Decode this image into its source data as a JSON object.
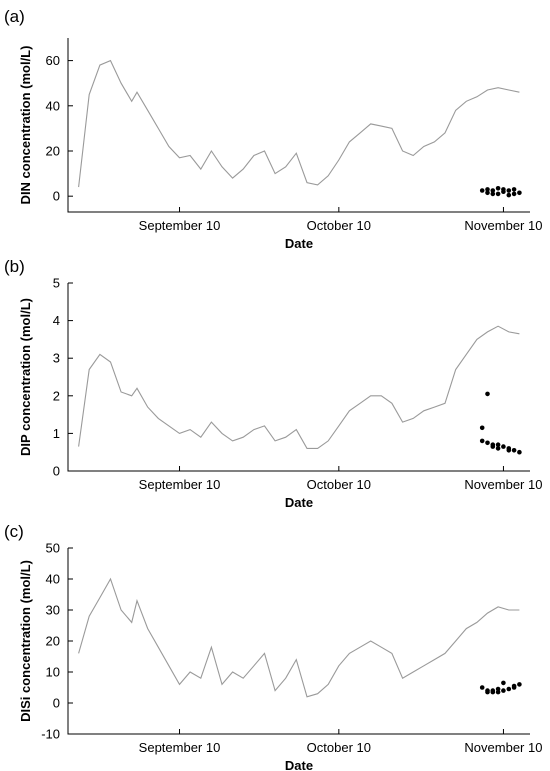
{
  "chart_data": [
    {
      "type": "line",
      "panel_label": "(a)",
      "xlabel": "Date",
      "ylabel": "DIN concentration (mol/L)",
      "x_tick_labels": [
        "September 10",
        "October 10",
        "November 10"
      ],
      "x_ticks": [
        "2023-09-10",
        "2023-10-10",
        "2023-11-10"
      ],
      "xlim": [
        "2023-08-20",
        "2023-11-15"
      ],
      "ylim": [
        -7,
        70
      ],
      "y_ticks": [
        0,
        20,
        40,
        60
      ],
      "series": [
        {
          "style": "line",
          "color": "#9a9a9a",
          "x": [
            "2023-08-22",
            "2023-08-24",
            "2023-08-26",
            "2023-08-28",
            "2023-08-30",
            "2023-09-01",
            "2023-09-02",
            "2023-09-04",
            "2023-09-06",
            "2023-09-08",
            "2023-09-10",
            "2023-09-12",
            "2023-09-14",
            "2023-09-16",
            "2023-09-18",
            "2023-09-20",
            "2023-09-22",
            "2023-09-24",
            "2023-09-26",
            "2023-09-28",
            "2023-09-30",
            "2023-10-02",
            "2023-10-04",
            "2023-10-06",
            "2023-10-08",
            "2023-10-10",
            "2023-10-12",
            "2023-10-14",
            "2023-10-16",
            "2023-10-18",
            "2023-10-20",
            "2023-10-22",
            "2023-10-24",
            "2023-10-26",
            "2023-10-28",
            "2023-10-30",
            "2023-11-01",
            "2023-11-03",
            "2023-11-05",
            "2023-11-07",
            "2023-11-09",
            "2023-11-11",
            "2023-11-13"
          ],
          "values": [
            4,
            45,
            58,
            60,
            50,
            42,
            46,
            38,
            30,
            22,
            17,
            18,
            12,
            20,
            13,
            8,
            12,
            18,
            20,
            10,
            13,
            19,
            6,
            5,
            9,
            16,
            24,
            28,
            32,
            31,
            30,
            20,
            18,
            22,
            24,
            28,
            38,
            42,
            44,
            47,
            48,
            47,
            46
          ]
        },
        {
          "style": "scatter",
          "color": "#000000",
          "x": [
            "2023-11-06",
            "2023-11-07",
            "2023-11-07",
            "2023-11-08",
            "2023-11-08",
            "2023-11-09",
            "2023-11-09",
            "2023-11-10",
            "2023-11-10",
            "2023-11-11",
            "2023-11-11",
            "2023-11-12",
            "2023-11-12",
            "2023-11-13"
          ],
          "values": [
            2.5,
            1.5,
            3.0,
            1.0,
            2.5,
            3.5,
            1.0,
            2.0,
            3.0,
            0.5,
            2.5,
            1.0,
            3.0,
            1.5
          ]
        }
      ]
    },
    {
      "type": "line",
      "panel_label": "(b)",
      "xlabel": "Date",
      "ylabel": "DIP concentration (mol/L)",
      "x_tick_labels": [
        "September 10",
        "October 10",
        "November 10"
      ],
      "x_ticks": [
        "2023-09-10",
        "2023-10-10",
        "2023-11-10"
      ],
      "xlim": [
        "2023-08-20",
        "2023-11-15"
      ],
      "ylim": [
        0,
        5
      ],
      "y_ticks": [
        0,
        1,
        2,
        3,
        4,
        5
      ],
      "series": [
        {
          "style": "line",
          "color": "#9a9a9a",
          "x": [
            "2023-08-22",
            "2023-08-24",
            "2023-08-26",
            "2023-08-28",
            "2023-08-30",
            "2023-09-01",
            "2023-09-02",
            "2023-09-04",
            "2023-09-06",
            "2023-09-08",
            "2023-09-10",
            "2023-09-12",
            "2023-09-14",
            "2023-09-16",
            "2023-09-18",
            "2023-09-20",
            "2023-09-22",
            "2023-09-24",
            "2023-09-26",
            "2023-09-28",
            "2023-09-30",
            "2023-10-02",
            "2023-10-04",
            "2023-10-06",
            "2023-10-08",
            "2023-10-10",
            "2023-10-12",
            "2023-10-14",
            "2023-10-16",
            "2023-10-18",
            "2023-10-20",
            "2023-10-22",
            "2023-10-24",
            "2023-10-26",
            "2023-10-28",
            "2023-10-30",
            "2023-11-01",
            "2023-11-03",
            "2023-11-05",
            "2023-11-07",
            "2023-11-09",
            "2023-11-11",
            "2023-11-13"
          ],
          "values": [
            0.65,
            2.7,
            3.1,
            2.9,
            2.1,
            2.0,
            2.2,
            1.7,
            1.4,
            1.2,
            1.0,
            1.1,
            0.9,
            1.3,
            1.0,
            0.8,
            0.9,
            1.1,
            1.2,
            0.8,
            0.9,
            1.1,
            0.6,
            0.6,
            0.8,
            1.2,
            1.6,
            1.8,
            2.0,
            2.0,
            1.8,
            1.3,
            1.4,
            1.6,
            1.7,
            1.8,
            2.7,
            3.1,
            3.5,
            3.7,
            3.85,
            3.7,
            3.65
          ]
        },
        {
          "style": "scatter",
          "color": "#000000",
          "x": [
            "2023-11-06",
            "2023-11-06",
            "2023-11-07",
            "2023-11-07",
            "2023-11-08",
            "2023-11-08",
            "2023-11-09",
            "2023-11-09",
            "2023-11-10",
            "2023-11-11",
            "2023-11-11",
            "2023-11-12",
            "2023-11-13"
          ],
          "values": [
            1.15,
            0.8,
            0.75,
            2.05,
            0.7,
            0.65,
            0.7,
            0.6,
            0.65,
            0.55,
            0.6,
            0.55,
            0.5
          ]
        }
      ]
    },
    {
      "type": "line",
      "panel_label": "(c)",
      "xlabel": "Date",
      "ylabel": "DISi concentration (mol/L)",
      "x_tick_labels": [
        "September 10",
        "October 10",
        "November 10"
      ],
      "x_ticks": [
        "2023-09-10",
        "2023-10-10",
        "2023-11-10"
      ],
      "xlim": [
        "2023-08-20",
        "2023-11-15"
      ],
      "ylim": [
        -10,
        50
      ],
      "y_ticks": [
        -10,
        0,
        10,
        20,
        30,
        40,
        50
      ],
      "series": [
        {
          "style": "line",
          "color": "#9a9a9a",
          "x": [
            "2023-08-22",
            "2023-08-24",
            "2023-08-26",
            "2023-08-28",
            "2023-08-30",
            "2023-09-01",
            "2023-09-02",
            "2023-09-04",
            "2023-09-06",
            "2023-09-08",
            "2023-09-10",
            "2023-09-12",
            "2023-09-14",
            "2023-09-16",
            "2023-09-18",
            "2023-09-20",
            "2023-09-22",
            "2023-09-24",
            "2023-09-26",
            "2023-09-28",
            "2023-09-30",
            "2023-10-02",
            "2023-10-04",
            "2023-10-06",
            "2023-10-08",
            "2023-10-10",
            "2023-10-12",
            "2023-10-14",
            "2023-10-16",
            "2023-10-18",
            "2023-10-20",
            "2023-10-22",
            "2023-10-24",
            "2023-10-26",
            "2023-10-28",
            "2023-10-30",
            "2023-11-01",
            "2023-11-03",
            "2023-11-05",
            "2023-11-07",
            "2023-11-09",
            "2023-11-11",
            "2023-11-13"
          ],
          "values": [
            16,
            28,
            34,
            40,
            30,
            26,
            33,
            24,
            18,
            12,
            6,
            10,
            8,
            18,
            6,
            10,
            8,
            12,
            16,
            4,
            8,
            14,
            2,
            3,
            6,
            12,
            16,
            18,
            20,
            18,
            16,
            8,
            10,
            12,
            14,
            16,
            20,
            24,
            26,
            29,
            31,
            30,
            30
          ]
        },
        {
          "style": "scatter",
          "color": "#000000",
          "x": [
            "2023-11-06",
            "2023-11-07",
            "2023-11-07",
            "2023-11-08",
            "2023-11-08",
            "2023-11-09",
            "2023-11-09",
            "2023-11-10",
            "2023-11-10",
            "2023-11-11",
            "2023-11-12",
            "2023-11-12",
            "2023-11-13"
          ],
          "values": [
            5,
            4,
            3.5,
            4,
            3.5,
            4.5,
            3.5,
            4,
            6.5,
            4.5,
            5,
            5.5,
            6
          ]
        }
      ]
    }
  ]
}
